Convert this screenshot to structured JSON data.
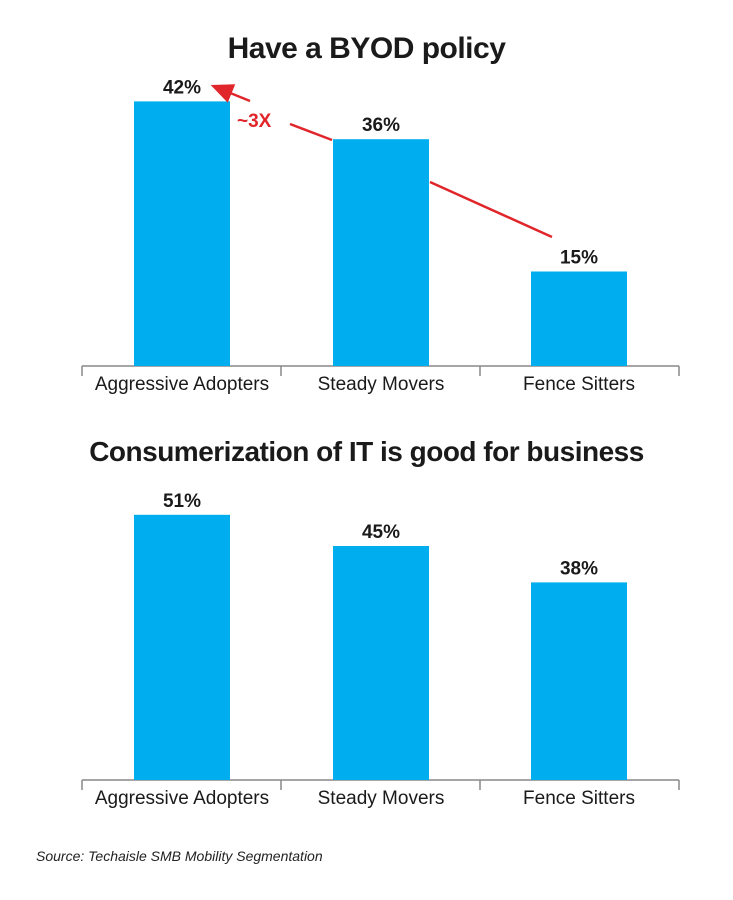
{
  "colors": {
    "bar": "#00aeef",
    "annotation": "#e0262a",
    "axis": "#888888",
    "text": "#1a1a1a"
  },
  "chart_data": [
    {
      "type": "bar",
      "title": "Have a BYOD policy",
      "categories": [
        "Aggressive Adopters",
        "Steady Movers",
        "Fence Sitters"
      ],
      "values": [
        42,
        36,
        15
      ],
      "value_labels": [
        "42%",
        "36%",
        "15%"
      ],
      "ylim": [
        0,
        50
      ],
      "annotation": {
        "text": "~3X",
        "from_category": "Fence Sitters",
        "to_category": "Aggressive Adopters"
      }
    },
    {
      "type": "bar",
      "title": "Consumerization of IT is good for business",
      "categories": [
        "Aggressive Adopters",
        "Steady Movers",
        "Fence Sitters"
      ],
      "values": [
        51,
        45,
        38
      ],
      "value_labels": [
        "51%",
        "45%",
        "38%"
      ],
      "ylim": [
        0,
        60
      ]
    }
  ],
  "source": "Source: Techaisle SMB Mobility Segmentation"
}
